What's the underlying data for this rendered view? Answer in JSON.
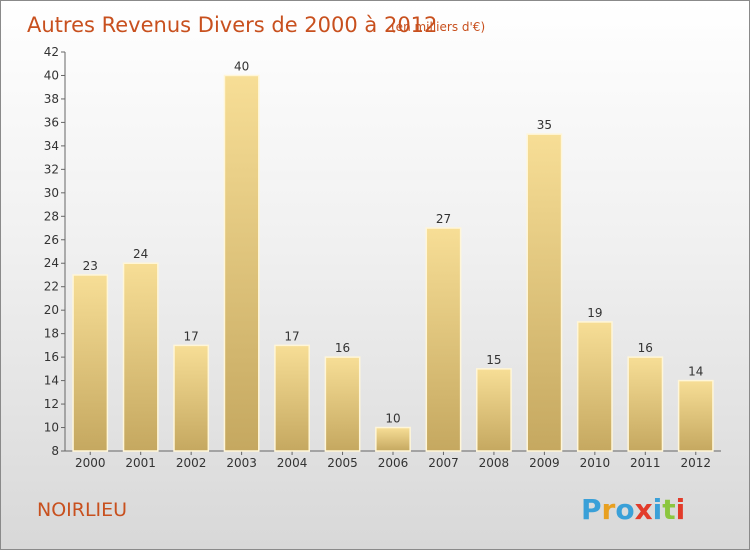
{
  "title": "Autres Revenus Divers de 2000 à 2012",
  "subtitle": "(en milliers d'€)",
  "commune": "NOIRLIEU",
  "brand": {
    "letters": [
      "P",
      "r",
      "o",
      "x",
      "i",
      "t",
      "i"
    ],
    "colors": [
      "#3aa0d8",
      "#e8a020",
      "#3aa0d8",
      "#e23b2a",
      "#3aa0d8",
      "#8cc63f",
      "#e23b2a"
    ]
  },
  "colors": {
    "accent": "#c8501e",
    "bar_light": "#f7de96",
    "bar_dark": "#c5a860",
    "bar_edge": "#fff6d8"
  },
  "chart_data": {
    "type": "bar",
    "categories": [
      "2000",
      "2001",
      "2002",
      "2003",
      "2004",
      "2005",
      "2006",
      "2007",
      "2008",
      "2009",
      "2010",
      "2011",
      "2012"
    ],
    "values": [
      23,
      24,
      17,
      40,
      17,
      16,
      10,
      27,
      15,
      35,
      19,
      16,
      14
    ],
    "title": "Autres Revenus Divers de 2000 à 2012",
    "subtitle": "(en milliers d'€)",
    "xlabel": "",
    "ylabel": "",
    "ylim": [
      8,
      42
    ],
    "yticks": [
      8,
      10,
      12,
      14,
      16,
      18,
      20,
      22,
      24,
      26,
      28,
      30,
      32,
      34,
      36,
      38,
      40,
      42
    ],
    "grid": false,
    "data_labels": true
  }
}
